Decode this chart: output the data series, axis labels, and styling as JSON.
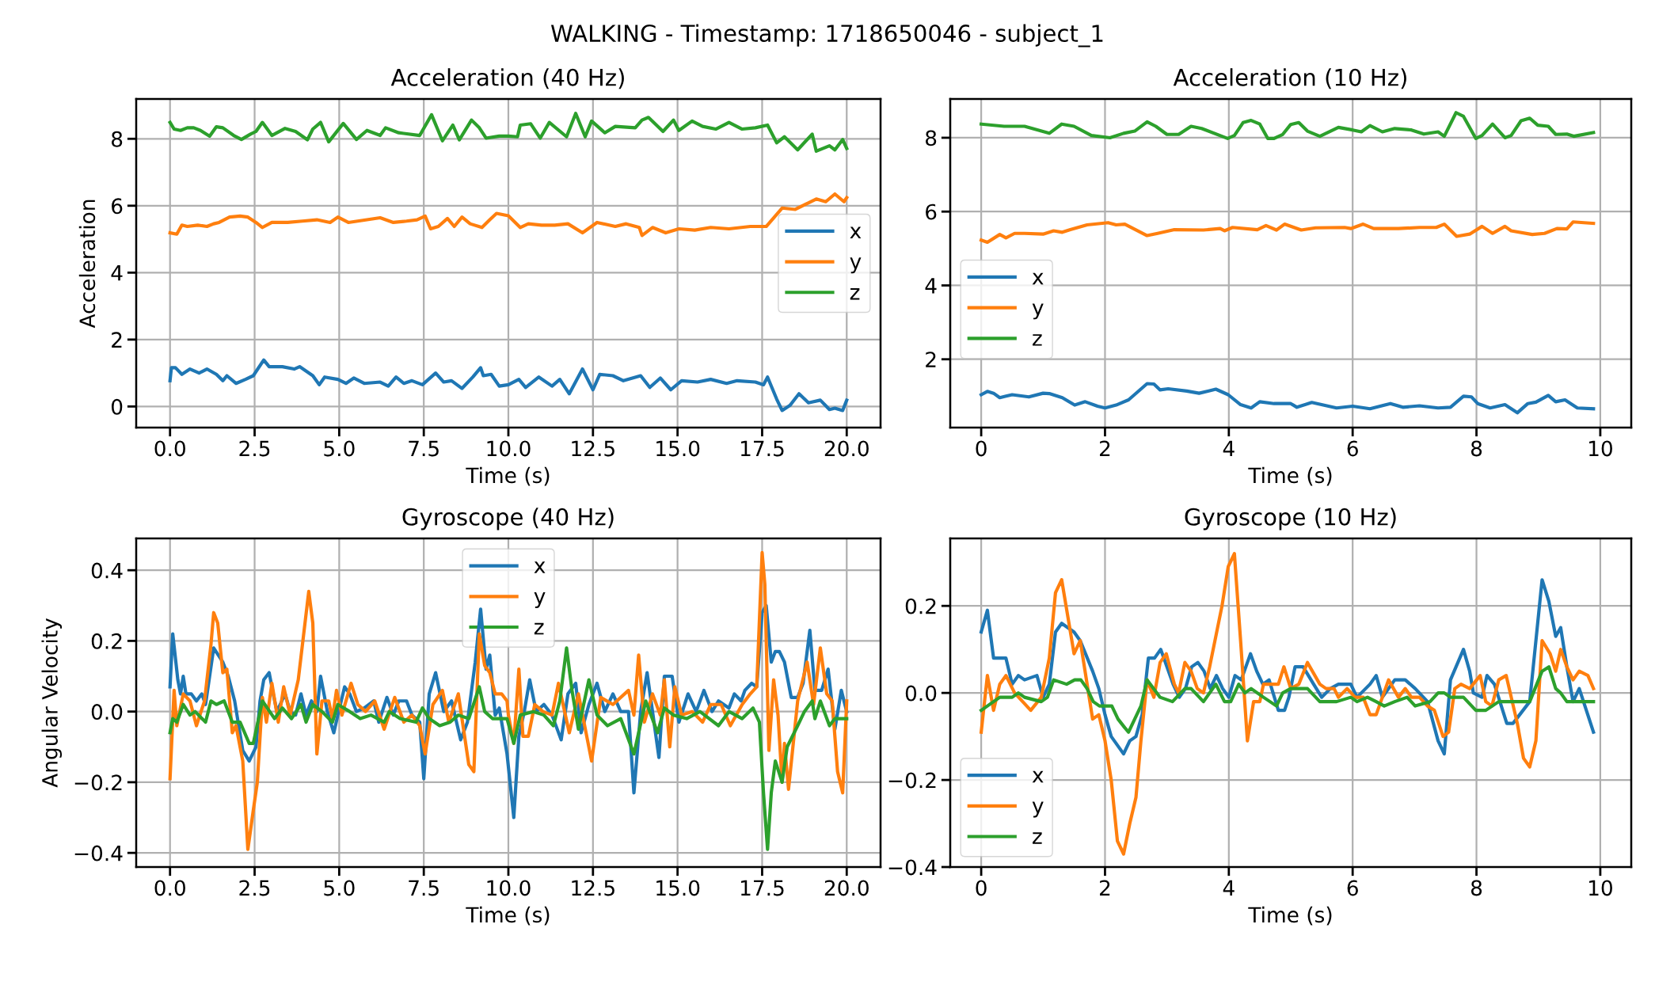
{
  "chart_data": [
    {
      "type": "line",
      "title": "Acceleration (40 Hz)",
      "xlabel": "Time (s)",
      "ylabel": "Acceleration",
      "annotations": [
        "WALKING - Timestamp: 1718650046 - subject_1"
      ],
      "grid": true,
      "legend": "right",
      "xlim": [
        -1,
        21
      ],
      "xticks": [
        {
          "value": 0,
          "label": "0.0"
        },
        {
          "value": 2.5,
          "label": "2.5"
        },
        {
          "value": 5,
          "label": "5.0"
        },
        {
          "value": 7.5,
          "label": "7.5"
        },
        {
          "value": 10,
          "label": "10.0"
        },
        {
          "value": 12.5,
          "label": "12.5"
        },
        {
          "value": 15,
          "label": "15.0"
        },
        {
          "value": 17.5,
          "label": "17.5"
        },
        {
          "value": 20,
          "label": "20.0"
        }
      ],
      "ylim": [
        -0.63,
        9.19
      ],
      "yticks": [
        0,
        2,
        4,
        6,
        8
      ],
      "series": [
        {
          "name": "x",
          "color": "#1f77b4",
          "x": [
            0,
            0.04,
            0.16,
            0.35,
            0.59,
            0.86,
            1.09,
            1.37,
            1.56,
            1.68,
            1.95,
            2.23,
            2.46,
            2.77,
            2.93,
            3.32,
            3.67,
            3.83,
            4.22,
            4.41,
            4.57,
            4.96,
            5.2,
            5.43,
            5.74,
            6.21,
            6.45,
            6.68,
            6.91,
            7.15,
            7.46,
            7.85,
            8.09,
            8.32,
            8.63,
            8.95,
            9.18,
            9.26,
            9.49,
            9.73,
            10.0,
            10.31,
            10.51,
            10.9,
            11.29,
            11.52,
            11.8,
            12.19,
            12.5,
            12.7,
            13.09,
            13.4,
            13.91,
            14.18,
            14.49,
            14.8,
            15.12,
            15.59,
            15.98,
            16.45,
            16.76,
            17.3,
            17.54,
            17.66,
            17.93,
            18.09,
            18.32,
            18.59,
            18.87,
            19.22,
            19.49,
            19.65,
            19.88,
            20.0
          ],
          "values": [
            0.77,
            1.16,
            1.16,
            0.96,
            1.12,
            1.0,
            1.12,
            0.96,
            0.77,
            0.92,
            0.69,
            0.81,
            0.92,
            1.39,
            1.19,
            1.19,
            1.12,
            1.19,
            0.92,
            0.65,
            0.88,
            0.81,
            0.69,
            0.85,
            0.69,
            0.73,
            0.61,
            0.88,
            0.69,
            0.77,
            0.65,
            1.0,
            0.73,
            0.77,
            0.54,
            0.88,
            1.16,
            0.92,
            0.96,
            0.61,
            0.65,
            0.81,
            0.57,
            0.88,
            0.61,
            0.81,
            0.38,
            1.12,
            0.5,
            0.96,
            0.92,
            0.77,
            0.92,
            0.57,
            0.85,
            0.5,
            0.77,
            0.73,
            0.81,
            0.69,
            0.77,
            0.73,
            0.65,
            0.88,
            0.22,
            -0.12,
            0.03,
            0.38,
            0.11,
            0.19,
            -0.09,
            -0.05,
            -0.12,
            0.19
          ]
        },
        {
          "name": "y",
          "color": "#ff7f0e",
          "x": [
            0,
            0.2,
            0.35,
            0.51,
            0.82,
            1.09,
            1.29,
            1.45,
            1.76,
            2.07,
            2.3,
            2.54,
            2.73,
            3.01,
            3.48,
            3.91,
            4.34,
            4.73,
            4.96,
            5.27,
            5.82,
            6.21,
            6.6,
            6.99,
            7.3,
            7.54,
            7.7,
            7.93,
            8.2,
            8.4,
            8.63,
            8.87,
            9.22,
            9.45,
            9.65,
            10.0,
            10.35,
            10.59,
            10.98,
            11.37,
            11.76,
            12.19,
            12.62,
            13.16,
            13.48,
            13.87,
            13.95,
            14.26,
            14.65,
            15.04,
            15.51,
            15.98,
            16.52,
            17.15,
            17.62,
            18.09,
            18.48,
            19.1,
            19.38,
            19.65,
            19.92,
            20.0
          ],
          "values": [
            5.19,
            5.15,
            5.42,
            5.38,
            5.42,
            5.38,
            5.46,
            5.5,
            5.66,
            5.69,
            5.66,
            5.5,
            5.35,
            5.5,
            5.5,
            5.54,
            5.58,
            5.5,
            5.66,
            5.5,
            5.58,
            5.64,
            5.5,
            5.54,
            5.58,
            5.69,
            5.31,
            5.38,
            5.62,
            5.38,
            5.66,
            5.46,
            5.35,
            5.58,
            5.77,
            5.7,
            5.35,
            5.46,
            5.42,
            5.42,
            5.46,
            5.19,
            5.5,
            5.38,
            5.46,
            5.35,
            5.11,
            5.35,
            5.19,
            5.31,
            5.27,
            5.35,
            5.31,
            5.38,
            5.38,
            5.93,
            5.89,
            6.2,
            6.12,
            6.35,
            6.12,
            6.24
          ]
        },
        {
          "name": "z",
          "color": "#2ca02c",
          "x": [
            0,
            0.12,
            0.31,
            0.51,
            0.7,
            0.9,
            1.17,
            1.37,
            1.56,
            1.88,
            2.11,
            2.38,
            2.54,
            2.73,
            3.01,
            3.4,
            3.71,
            4.06,
            4.22,
            4.45,
            4.69,
            5.12,
            5.51,
            5.82,
            6.21,
            6.37,
            6.76,
            7.38,
            7.73,
            8.05,
            8.36,
            8.55,
            8.91,
            9.14,
            9.34,
            9.73,
            10.0,
            10.27,
            10.35,
            10.66,
            10.94,
            11.21,
            11.72,
            11.99,
            12.27,
            12.46,
            12.85,
            13.16,
            13.75,
            13.95,
            14.14,
            14.57,
            14.88,
            15.04,
            15.43,
            15.74,
            16.13,
            16.52,
            16.91,
            17.3,
            17.66,
            17.93,
            18.16,
            18.55,
            18.98,
            19.1,
            19.49,
            19.65,
            19.88,
            20.0
          ],
          "values": [
            8.49,
            8.29,
            8.25,
            8.33,
            8.33,
            8.25,
            8.08,
            8.36,
            8.33,
            8.1,
            7.98,
            8.14,
            8.22,
            8.49,
            8.1,
            8.31,
            8.22,
            7.97,
            8.29,
            8.49,
            7.91,
            8.46,
            7.98,
            8.25,
            8.1,
            8.33,
            8.18,
            8.1,
            8.72,
            7.94,
            8.41,
            7.97,
            8.56,
            8.33,
            8.02,
            8.08,
            8.08,
            8.06,
            8.41,
            8.45,
            8.02,
            8.49,
            8.06,
            8.76,
            8.06,
            8.53,
            8.18,
            8.37,
            8.33,
            8.56,
            8.64,
            8.22,
            8.56,
            8.25,
            8.53,
            8.37,
            8.29,
            8.49,
            8.29,
            8.33,
            8.41,
            7.88,
            8.06,
            7.67,
            8.14,
            7.63,
            7.79,
            7.67,
            7.98,
            7.71
          ]
        }
      ]
    },
    {
      "type": "line",
      "title": "Acceleration (10 Hz)",
      "xlabel": "Time (s)",
      "grid": true,
      "legend": "left",
      "xlim": [
        -0.5,
        10.5
      ],
      "xticks": [
        0,
        2,
        4,
        6,
        8,
        10
      ],
      "ylim": [
        0.15,
        9.05
      ],
      "yticks": [
        2,
        4,
        6,
        8
      ],
      "series": [
        {
          "name": "x",
          "color": "#1f77b4",
          "x": [
            0,
            0.1,
            0.2,
            0.3,
            0.5,
            0.77,
            1.0,
            1.1,
            1.31,
            1.51,
            1.68,
            1.88,
            2.0,
            2.18,
            2.38,
            2.68,
            2.79,
            2.89,
            3.02,
            3.32,
            3.52,
            3.79,
            3.99,
            4.19,
            4.36,
            4.5,
            4.73,
            5.0,
            5.1,
            5.34,
            5.74,
            6.0,
            6.28,
            6.61,
            6.81,
            7.08,
            7.38,
            7.58,
            7.79,
            7.92,
            8.02,
            8.22,
            8.46,
            8.66,
            8.83,
            8.96,
            9.16,
            9.28,
            9.43,
            9.63,
            9.89
          ],
          "values": [
            1.04,
            1.13,
            1.08,
            0.96,
            1.04,
            0.98,
            1.08,
            1.07,
            0.96,
            0.76,
            0.85,
            0.73,
            0.68,
            0.76,
            0.9,
            1.34,
            1.33,
            1.17,
            1.2,
            1.14,
            1.08,
            1.19,
            1.04,
            0.77,
            0.68,
            0.85,
            0.8,
            0.8,
            0.7,
            0.83,
            0.68,
            0.73,
            0.66,
            0.8,
            0.7,
            0.74,
            0.68,
            0.7,
            1.0,
            0.98,
            0.8,
            0.68,
            0.77,
            0.55,
            0.8,
            0.84,
            1.02,
            0.85,
            0.9,
            0.68,
            0.66
          ]
        },
        {
          "name": "y",
          "color": "#ff7f0e",
          "x": [
            0,
            0.1,
            0.3,
            0.4,
            0.54,
            0.7,
            1.0,
            1.17,
            1.31,
            1.44,
            1.71,
            2.05,
            2.18,
            2.32,
            2.68,
            2.85,
            3.12,
            3.59,
            3.86,
            3.93,
            4.06,
            4.46,
            4.6,
            4.77,
            4.9,
            5.17,
            5.4,
            5.87,
            5.97,
            6.17,
            6.34,
            6.74,
            7.08,
            7.35,
            7.48,
            7.68,
            7.89,
            8.09,
            8.26,
            8.46,
            8.56,
            8.9,
            9.1,
            9.3,
            9.46,
            9.56,
            9.89
          ],
          "values": [
            5.23,
            5.17,
            5.38,
            5.29,
            5.41,
            5.41,
            5.39,
            5.48,
            5.44,
            5.51,
            5.64,
            5.7,
            5.64,
            5.66,
            5.35,
            5.41,
            5.51,
            5.5,
            5.54,
            5.48,
            5.57,
            5.51,
            5.62,
            5.5,
            5.66,
            5.5,
            5.56,
            5.57,
            5.54,
            5.66,
            5.54,
            5.54,
            5.57,
            5.57,
            5.66,
            5.33,
            5.39,
            5.6,
            5.41,
            5.6,
            5.48,
            5.38,
            5.41,
            5.54,
            5.53,
            5.72,
            5.68
          ]
        },
        {
          "name": "z",
          "color": "#2ca02c",
          "x": [
            0,
            0.37,
            0.7,
            1.1,
            1.3,
            1.5,
            1.78,
            2.08,
            2.3,
            2.48,
            2.68,
            2.82,
            3.0,
            3.19,
            3.39,
            3.56,
            3.98,
            4.09,
            4.23,
            4.36,
            4.5,
            4.63,
            4.73,
            4.87,
            5.0,
            5.13,
            5.27,
            5.47,
            5.77,
            6.0,
            6.14,
            6.28,
            6.48,
            6.68,
            6.95,
            7.15,
            7.38,
            7.48,
            7.67,
            7.79,
            7.99,
            8.09,
            8.26,
            8.46,
            8.56,
            8.72,
            8.86,
            8.99,
            9.16,
            9.28,
            9.46,
            9.57,
            9.89
          ],
          "values": [
            8.37,
            8.31,
            8.31,
            8.12,
            8.37,
            8.31,
            8.06,
            8.0,
            8.12,
            8.18,
            8.43,
            8.31,
            8.09,
            8.09,
            8.31,
            8.25,
            7.98,
            8.06,
            8.41,
            8.47,
            8.37,
            7.98,
            7.98,
            8.09,
            8.36,
            8.41,
            8.18,
            8.04,
            8.28,
            8.21,
            8.16,
            8.33,
            8.16,
            8.25,
            8.21,
            8.1,
            8.16,
            8.04,
            8.68,
            8.58,
            7.98,
            8.06,
            8.37,
            8.0,
            8.06,
            8.46,
            8.53,
            8.34,
            8.31,
            8.09,
            8.1,
            8.04,
            8.14
          ]
        }
      ]
    },
    {
      "type": "line",
      "title": "Gyroscope (40 Hz)",
      "xlabel": "Time (s)",
      "ylabel": "Angular Velocity",
      "grid": true,
      "legend": "top",
      "xlim": [
        -1,
        21
      ],
      "xticks": [
        {
          "value": 0,
          "label": "0.0"
        },
        {
          "value": 2.5,
          "label": "2.5"
        },
        {
          "value": 5,
          "label": "5.0"
        },
        {
          "value": 7.5,
          "label": "7.5"
        },
        {
          "value": 10,
          "label": "10.0"
        },
        {
          "value": 12.5,
          "label": "12.5"
        },
        {
          "value": 15,
          "label": "15.0"
        },
        {
          "value": 17.5,
          "label": "17.5"
        },
        {
          "value": 20,
          "label": "20.0"
        }
      ],
      "ylim": [
        -0.44,
        0.49
      ],
      "yticks": [
        {
          "value": -0.4,
          "label": "−0.4"
        },
        {
          "value": -0.2,
          "label": "−0.2"
        },
        {
          "value": 0,
          "label": "0.0"
        },
        {
          "value": 0.2,
          "label": "0.2"
        },
        {
          "value": 0.4,
          "label": "0.4"
        }
      ],
      "series": [
        {
          "name": "x",
          "color": "#1f77b4",
          "x": [
            0,
            0.08,
            0.23,
            0.31,
            0.39,
            0.47,
            0.63,
            0.78,
            0.94,
            1.05,
            1.29,
            1.56,
            1.72,
            1.91,
            2.15,
            2.34,
            2.54,
            2.66,
            2.77,
            2.93,
            3.05,
            3.16,
            3.4,
            3.55,
            3.71,
            3.87,
            4.02,
            4.18,
            4.34,
            4.45,
            4.65,
            4.84,
            4.96,
            5.16,
            5.31,
            5.51,
            5.74,
            6.02,
            6.17,
            6.41,
            6.6,
            6.76,
            6.99,
            7.15,
            7.38,
            7.5,
            7.66,
            7.85,
            8.09,
            8.32,
            8.59,
            8.79,
            9.02,
            9.18,
            9.34,
            9.45,
            9.61,
            9.73,
            9.96,
            10.16,
            10.31,
            10.47,
            10.63,
            10.82,
            11.05,
            11.29,
            11.56,
            11.76,
            11.99,
            12.15,
            12.38,
            12.62,
            12.85,
            13.09,
            13.32,
            13.55,
            13.71,
            13.91,
            14.1,
            14.26,
            14.45,
            14.61,
            14.84,
            15.04,
            15.31,
            15.55,
            15.78,
            16.02,
            16.21,
            16.52,
            16.68,
            16.88,
            16.99,
            17.19,
            17.34,
            17.5,
            17.62,
            17.77,
            17.89,
            18.01,
            18.16,
            18.36,
            18.55,
            18.71,
            18.91,
            19.06,
            19.26,
            19.45,
            19.65,
            19.84,
            20.0
          ],
          "values": [
            0.07,
            0.22,
            0.09,
            0.05,
            0.1,
            0.05,
            0.05,
            0.03,
            0.05,
            0.02,
            0.18,
            0.14,
            0.1,
            0.03,
            -0.11,
            -0.14,
            -0.1,
            0.03,
            0.09,
            0.11,
            0.05,
            0.0,
            0.05,
            0.0,
            -0.01,
            0.05,
            -0.01,
            0.03,
            0.0,
            0.1,
            0.0,
            -0.06,
            -0.01,
            0.07,
            0.05,
            0.0,
            0.01,
            0.03,
            -0.03,
            0.04,
            -0.01,
            0.03,
            0.03,
            -0.01,
            -0.03,
            -0.19,
            0.05,
            0.11,
            0.0,
            0.03,
            -0.08,
            -0.03,
            0.14,
            0.29,
            0.12,
            0.16,
            -0.01,
            0.01,
            -0.12,
            -0.3,
            -0.07,
            0.0,
            0.09,
            0.0,
            0.02,
            -0.01,
            -0.08,
            0.05,
            0.08,
            -0.06,
            0.02,
            0.08,
            0.0,
            0.05,
            0.0,
            0.0,
            -0.23,
            0.0,
            0.11,
            0.0,
            -0.13,
            0.1,
            0.1,
            -0.03,
            0.05,
            0.0,
            0.06,
            0.0,
            0.03,
            0.01,
            0.05,
            0.03,
            0.06,
            0.08,
            0.07,
            0.28,
            0.3,
            0.14,
            0.17,
            0.17,
            0.14,
            0.04,
            0.04,
            0.08,
            0.23,
            0.06,
            0.06,
            0.12,
            -0.05,
            0.06,
            0.0
          ]
        },
        {
          "name": "y",
          "color": "#ff7f0e",
          "x": [
            0,
            0.12,
            0.2,
            0.39,
            0.59,
            0.78,
            1.02,
            1.21,
            1.29,
            1.41,
            1.56,
            1.68,
            1.84,
            1.95,
            2.15,
            2.3,
            2.46,
            2.58,
            2.73,
            2.85,
            3.01,
            3.2,
            3.36,
            3.55,
            3.79,
            4.1,
            4.22,
            4.34,
            4.49,
            4.69,
            4.8,
            4.92,
            5.08,
            5.35,
            5.55,
            5.78,
            6.05,
            6.33,
            6.64,
            6.91,
            7.15,
            7.38,
            7.54,
            7.77,
            8.05,
            8.24,
            8.52,
            8.83,
            8.98,
            9.14,
            9.3,
            9.45,
            9.61,
            9.8,
            9.96,
            10.0,
            10.16,
            10.31,
            10.43,
            10.59,
            10.78,
            11.02,
            11.29,
            11.48,
            11.8,
            12.07,
            12.46,
            12.73,
            13.09,
            13.55,
            13.71,
            13.85,
            14.02,
            14.26,
            14.49,
            14.61,
            14.77,
            14.92,
            15.12,
            15.43,
            15.74,
            15.98,
            16.29,
            16.56,
            16.91,
            17.15,
            17.34,
            17.5,
            17.58,
            17.7,
            17.84,
            17.97,
            18.09,
            18.16,
            18.28,
            18.55,
            18.83,
            19.02,
            19.22,
            19.41,
            19.57,
            19.73,
            19.88,
            20.0
          ],
          "values": [
            -0.19,
            0.06,
            -0.04,
            0.05,
            0.03,
            -0.04,
            0.03,
            0.19,
            0.28,
            0.25,
            0.11,
            0.12,
            -0.06,
            -0.04,
            -0.14,
            -0.39,
            -0.28,
            -0.2,
            0.04,
            -0.03,
            0.08,
            -0.03,
            0.07,
            -0.01,
            0.09,
            0.34,
            0.25,
            -0.12,
            0.03,
            0.03,
            -0.02,
            0.06,
            -0.01,
            0.08,
            0.02,
            0.0,
            0.03,
            -0.05,
            0.04,
            -0.03,
            -0.01,
            -0.04,
            -0.12,
            0.02,
            0.06,
            -0.03,
            0.05,
            -0.15,
            -0.17,
            0.22,
            0.13,
            0.11,
            0.05,
            0.05,
            0.03,
            -0.01,
            -0.09,
            0.12,
            -0.07,
            -0.07,
            0.02,
            0.0,
            -0.01,
            0.08,
            -0.06,
            0.05,
            -0.14,
            0.04,
            0.02,
            0.06,
            -0.01,
            0.16,
            -0.03,
            0.05,
            -0.01,
            0.09,
            -0.1,
            0.07,
            -0.01,
            0.0,
            -0.03,
            0.02,
            0.02,
            -0.04,
            0.02,
            0.05,
            0.07,
            0.45,
            0.36,
            -0.11,
            0.09,
            -0.01,
            -0.2,
            -0.09,
            -0.22,
            0.03,
            0.14,
            0.02,
            0.18,
            0.05,
            0.03,
            -0.17,
            -0.23,
            0.03
          ]
        },
        {
          "name": "z",
          "color": "#2ca02c",
          "x": [
            0,
            0.08,
            0.2,
            0.39,
            0.59,
            0.74,
            1.05,
            1.21,
            1.37,
            1.6,
            1.84,
            2.07,
            2.34,
            2.46,
            2.73,
            3.09,
            3.32,
            3.59,
            3.87,
            4.02,
            4.22,
            4.49,
            4.8,
            4.96,
            5.31,
            5.62,
            5.94,
            6.33,
            6.48,
            6.8,
            7.27,
            7.46,
            7.66,
            7.97,
            8.28,
            8.52,
            8.83,
            9.14,
            9.3,
            9.53,
            9.96,
            10.16,
            10.35,
            10.74,
            11.05,
            11.33,
            11.52,
            11.72,
            11.88,
            12.07,
            12.38,
            12.62,
            12.93,
            13.32,
            13.71,
            14.06,
            14.41,
            14.61,
            14.88,
            15.27,
            15.66,
            16.21,
            16.52,
            16.91,
            17.23,
            17.42,
            17.54,
            17.66,
            17.77,
            17.89,
            18.09,
            18.24,
            18.55,
            18.75,
            18.98,
            19.06,
            19.22,
            19.49,
            19.65,
            20.0
          ],
          "values": [
            -0.06,
            -0.02,
            -0.03,
            0.02,
            -0.01,
            0.0,
            -0.03,
            0.03,
            0.02,
            0.03,
            -0.03,
            -0.03,
            -0.09,
            -0.09,
            0.03,
            -0.02,
            0.01,
            -0.02,
            0.02,
            -0.03,
            0.02,
            0.0,
            -0.03,
            0.02,
            0.0,
            -0.02,
            -0.01,
            -0.03,
            0.0,
            -0.02,
            -0.03,
            0.01,
            -0.02,
            -0.04,
            -0.03,
            -0.01,
            -0.02,
            0.07,
            0.0,
            -0.02,
            -0.02,
            -0.09,
            -0.01,
            0.0,
            -0.01,
            -0.04,
            0.03,
            0.18,
            0.06,
            -0.05,
            0.09,
            -0.01,
            -0.04,
            -0.02,
            -0.12,
            0.03,
            -0.06,
            0.01,
            -0.01,
            -0.02,
            0.0,
            -0.04,
            0.0,
            -0.02,
            0.01,
            -0.03,
            -0.23,
            -0.39,
            -0.23,
            -0.14,
            -0.2,
            -0.1,
            -0.04,
            0.0,
            0.03,
            -0.02,
            0.03,
            -0.04,
            -0.02,
            -0.02
          ]
        }
      ]
    },
    {
      "type": "line",
      "title": "Gyroscope (10 Hz)",
      "xlabel": "Time (s)",
      "grid": true,
      "legend": "bottom left",
      "xlim": [
        -0.5,
        10.5
      ],
      "xticks": [
        0,
        2,
        4,
        6,
        8,
        10
      ],
      "ylim": [
        -0.4,
        0.355
      ],
      "yticks": [
        {
          "value": -0.4,
          "label": "−0.4"
        },
        {
          "value": -0.2,
          "label": "−0.2"
        },
        {
          "value": 0,
          "label": "0.0"
        },
        {
          "value": 0.2,
          "label": "0.2"
        }
      ],
      "series": [
        {
          "name": "x",
          "color": "#1f77b4",
          "x": [
            0,
            0.1,
            0.2,
            0.3,
            0.4,
            0.5,
            0.6,
            0.7,
            0.9,
            1.0,
            1.1,
            1.2,
            1.3,
            1.4,
            1.5,
            1.6,
            1.8,
            1.9,
            2.0,
            2.1,
            2.3,
            2.4,
            2.5,
            2.6,
            2.7,
            2.8,
            2.9,
            3.0,
            3.1,
            3.2,
            3.3,
            3.4,
            3.5,
            3.6,
            3.7,
            3.8,
            3.9,
            4.0,
            4.1,
            4.2,
            4.35,
            4.45,
            4.55,
            4.65,
            4.8,
            4.9,
            4.97,
            5.07,
            5.2,
            5.37,
            5.5,
            5.64,
            5.77,
            5.97,
            6.07,
            6.28,
            6.38,
            6.48,
            6.68,
            6.85,
            7.01,
            7.21,
            7.38,
            7.48,
            7.58,
            7.79,
            7.89,
            7.95,
            8.09,
            8.17,
            8.29,
            8.49,
            8.59,
            8.86,
            9.06,
            9.17,
            9.28,
            9.36,
            9.46,
            9.56,
            9.66,
            9.89
          ],
          "values": [
            0.14,
            0.19,
            0.08,
            0.08,
            0.08,
            0.02,
            0.04,
            0.03,
            0.04,
            -0.01,
            0.02,
            0.14,
            0.16,
            0.15,
            0.14,
            0.12,
            0.05,
            0.01,
            -0.05,
            -0.1,
            -0.14,
            -0.11,
            -0.1,
            -0.05,
            0.08,
            0.08,
            0.1,
            0.06,
            0.02,
            -0.01,
            0.01,
            0.06,
            0.07,
            0.05,
            0.01,
            0.04,
            0.01,
            -0.01,
            0.04,
            0.03,
            0.09,
            0.05,
            0.02,
            0.03,
            -0.04,
            -0.04,
            -0.01,
            0.06,
            0.06,
            0.02,
            -0.01,
            0.01,
            0.02,
            0.02,
            -0.01,
            0.02,
            0.04,
            -0.01,
            0.03,
            0.03,
            0.01,
            -0.02,
            -0.11,
            -0.14,
            0.03,
            0.1,
            0.05,
            0.0,
            -0.01,
            0.04,
            0.02,
            -0.07,
            -0.07,
            -0.02,
            0.26,
            0.21,
            0.13,
            0.15,
            0.06,
            -0.02,
            0.01,
            -0.09
          ]
        },
        {
          "name": "y",
          "color": "#ff7f0e",
          "x": [
            0,
            0.1,
            0.2,
            0.3,
            0.4,
            0.54,
            0.8,
            0.97,
            1.1,
            1.2,
            1.3,
            1.5,
            1.6,
            1.8,
            1.9,
            2.0,
            2.1,
            2.2,
            2.3,
            2.4,
            2.5,
            2.58,
            2.68,
            2.79,
            2.89,
            2.99,
            3.12,
            3.19,
            3.29,
            3.39,
            3.49,
            3.59,
            3.69,
            3.79,
            3.89,
            3.99,
            4.09,
            4.19,
            4.3,
            4.4,
            4.5,
            4.56,
            4.7,
            4.8,
            4.89,
            5.0,
            5.13,
            5.27,
            5.47,
            5.57,
            5.7,
            5.77,
            5.91,
            6.04,
            6.17,
            6.28,
            6.38,
            6.58,
            6.74,
            6.85,
            6.95,
            7.08,
            7.21,
            7.32,
            7.46,
            7.55,
            7.65,
            7.75,
            7.89,
            8.06,
            8.15,
            8.25,
            8.36,
            8.48,
            8.66,
            8.76,
            8.86,
            8.96,
            9.06,
            9.19,
            9.28,
            9.36,
            9.46,
            9.56,
            9.66,
            9.8,
            9.89
          ],
          "values": [
            -0.09,
            0.04,
            -0.04,
            0.02,
            0.04,
            0.0,
            -0.04,
            -0.01,
            0.08,
            0.23,
            0.26,
            0.09,
            0.12,
            -0.06,
            -0.05,
            -0.11,
            -0.2,
            -0.34,
            -0.37,
            -0.3,
            -0.24,
            -0.11,
            0.03,
            -0.01,
            0.07,
            0.09,
            0.02,
            0.0,
            0.07,
            0.05,
            0.01,
            0.0,
            0.06,
            0.13,
            0.2,
            0.29,
            0.32,
            0.12,
            -0.11,
            -0.02,
            -0.02,
            0.02,
            0.02,
            0.02,
            0.06,
            0.01,
            0.02,
            0.07,
            0.02,
            0.01,
            0.01,
            -0.01,
            0.01,
            -0.01,
            -0.01,
            -0.05,
            -0.05,
            0.03,
            -0.01,
            0.01,
            -0.01,
            -0.01,
            -0.03,
            -0.04,
            -0.1,
            -0.09,
            0.01,
            0.02,
            0.01,
            0.04,
            -0.02,
            -0.03,
            0.03,
            0.04,
            -0.07,
            -0.15,
            -0.17,
            -0.11,
            0.12,
            0.09,
            0.05,
            0.1,
            0.06,
            0.03,
            0.05,
            0.04,
            0.01
          ]
        },
        {
          "name": "z",
          "color": "#2ca02c",
          "x": [
            0,
            0.2,
            0.3,
            0.4,
            0.5,
            0.6,
            0.7,
            0.97,
            1.07,
            1.17,
            1.38,
            1.51,
            1.61,
            1.71,
            1.81,
            1.91,
            2.11,
            2.21,
            2.32,
            2.38,
            2.48,
            2.58,
            2.68,
            2.89,
            3.09,
            3.29,
            3.39,
            3.59,
            3.79,
            3.93,
            4.03,
            4.16,
            4.26,
            4.36,
            4.56,
            4.77,
            4.87,
            5.0,
            5.27,
            5.47,
            5.74,
            5.97,
            6.07,
            6.24,
            6.38,
            6.51,
            6.68,
            6.88,
            7.01,
            7.25,
            7.38,
            7.48,
            7.58,
            7.79,
            7.99,
            8.15,
            8.36,
            8.52,
            8.69,
            8.86,
            9.06,
            9.17,
            9.28,
            9.36,
            9.46,
            9.59,
            9.73,
            9.89
          ],
          "values": [
            -0.04,
            -0.02,
            -0.01,
            -0.01,
            -0.01,
            0.0,
            -0.01,
            -0.02,
            -0.01,
            0.03,
            0.02,
            0.03,
            0.03,
            0.01,
            -0.02,
            -0.03,
            -0.03,
            -0.06,
            -0.08,
            -0.09,
            -0.06,
            -0.03,
            0.03,
            -0.01,
            -0.02,
            0.01,
            0.01,
            -0.02,
            0.02,
            -0.02,
            -0.02,
            0.02,
            0.0,
            0.01,
            -0.01,
            -0.03,
            0.0,
            0.01,
            0.01,
            -0.02,
            -0.02,
            -0.01,
            -0.02,
            -0.01,
            -0.02,
            -0.03,
            -0.02,
            -0.01,
            -0.03,
            -0.02,
            0.0,
            0.0,
            -0.01,
            -0.01,
            -0.04,
            -0.04,
            -0.02,
            -0.02,
            -0.02,
            -0.02,
            0.05,
            0.06,
            0.01,
            0.0,
            -0.02,
            -0.02,
            -0.02,
            -0.02
          ]
        }
      ]
    }
  ]
}
